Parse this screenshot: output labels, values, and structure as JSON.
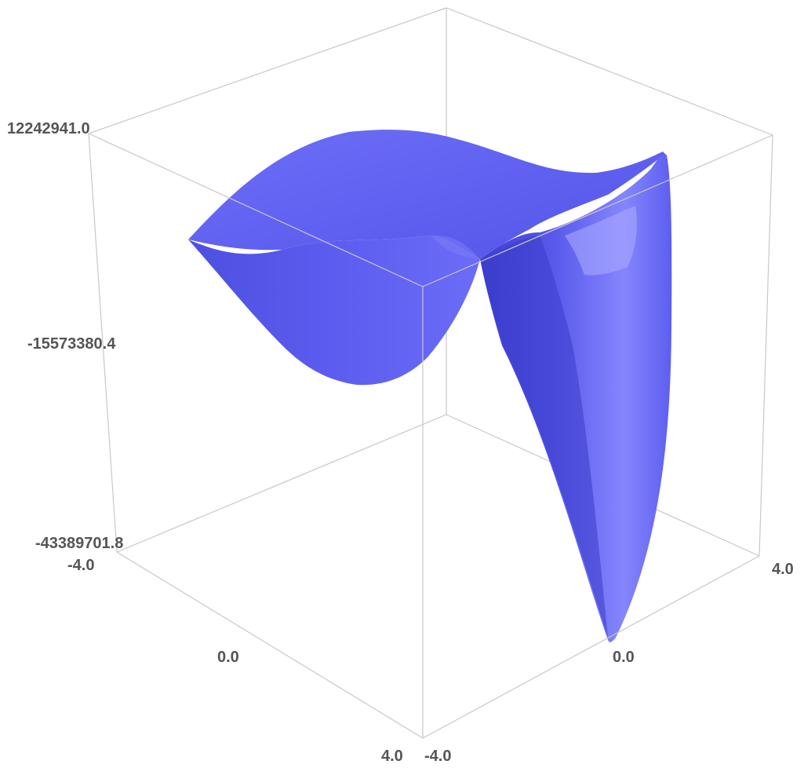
{
  "chart_data": {
    "type": "surface3d",
    "x": [
      -4.0,
      0.0,
      4.0
    ],
    "y": [
      -4.0,
      0.0,
      4.0
    ],
    "zlim": [
      -43389701.8,
      12242941.0
    ],
    "x_ticks": [
      "-4.0",
      "0.0",
      "4.0"
    ],
    "y_ticks": [
      "-4.0",
      "0.0",
      "4.0"
    ],
    "z_ticks": [
      "12242941.0",
      "-15573380.4",
      "-43389701.8"
    ],
    "grid": false,
    "colors": {
      "surface": "#5f60f0",
      "surface_shadow": "#3e3fd2",
      "surface_highlight": "#8f90ff",
      "box": "#c8c8c8",
      "tick_text": "#555555"
    }
  }
}
